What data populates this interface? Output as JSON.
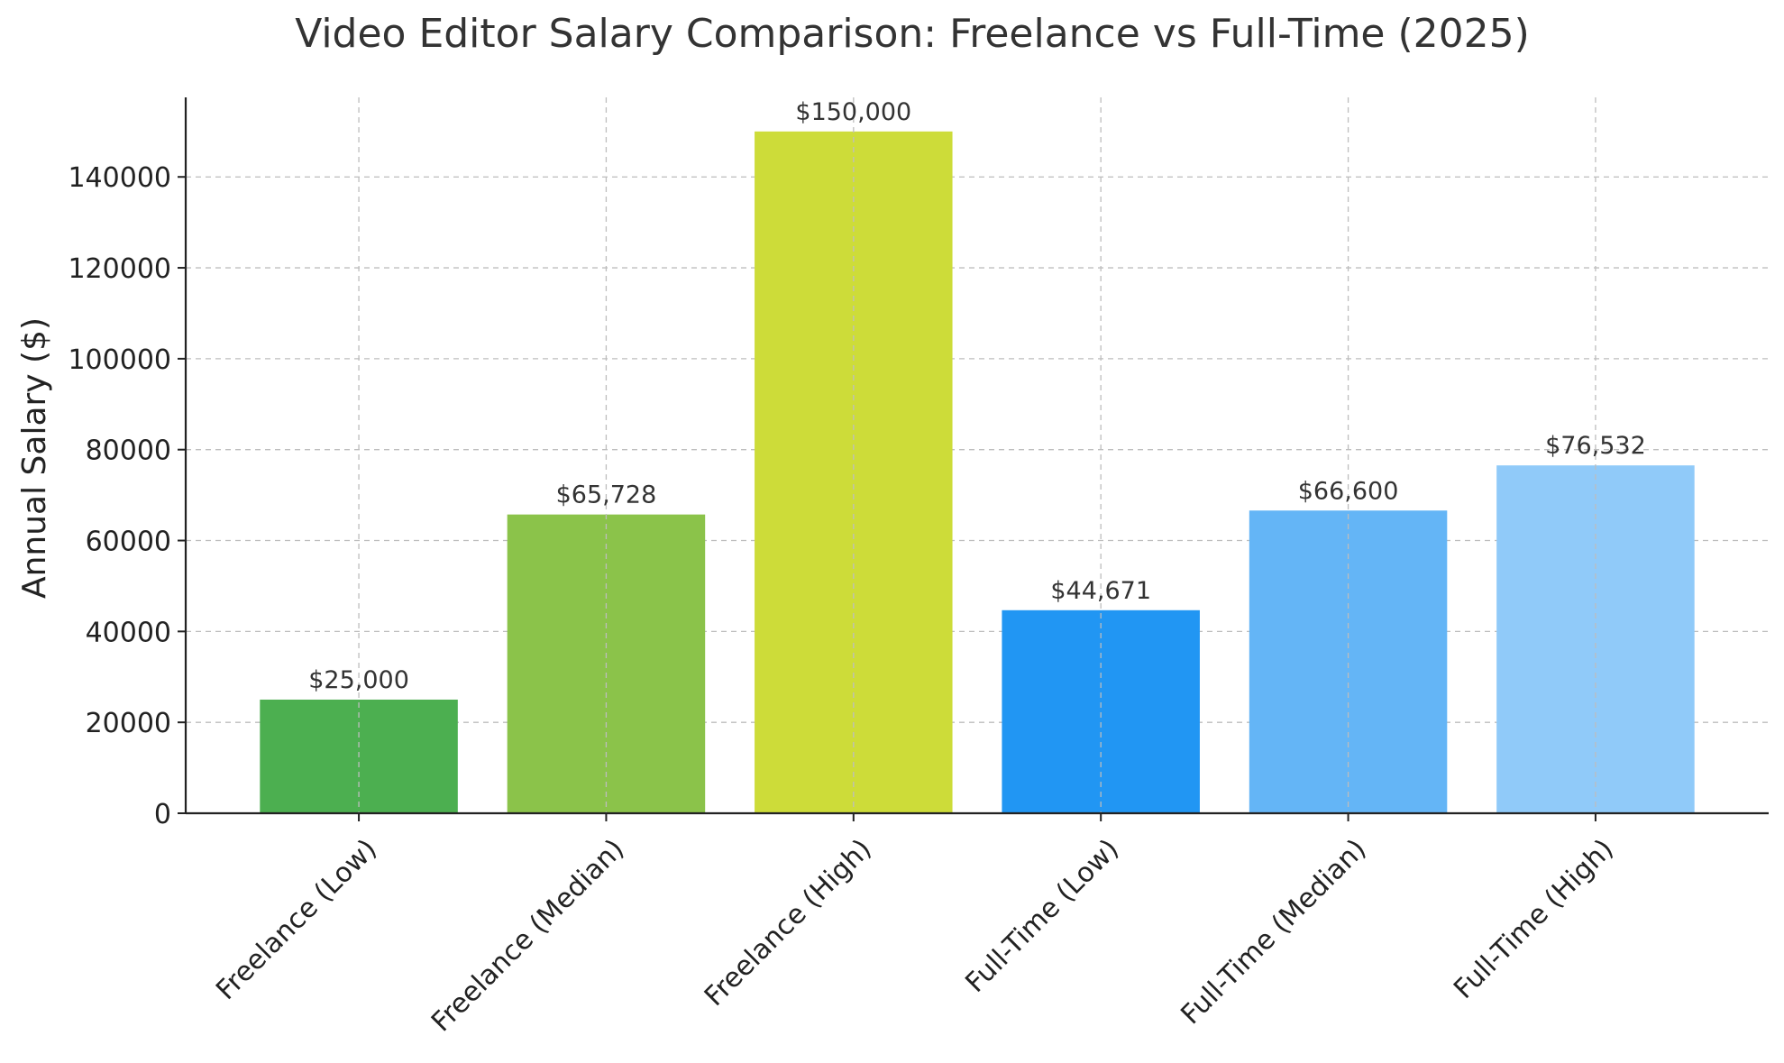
{
  "chart_data": {
    "type": "bar",
    "title": "Video Editor Salary Comparison: Freelance vs Full-Time (2025)",
    "xlabel": "",
    "ylabel": "Annual Salary ($)",
    "ylim": [
      0,
      157500
    ],
    "yticks": [
      0,
      20000,
      40000,
      60000,
      80000,
      100000,
      120000,
      140000
    ],
    "ytick_labels": [
      "0",
      "20000",
      "40000",
      "60000",
      "80000",
      "100000",
      "120000",
      "140000"
    ],
    "categories": [
      "Freelance (Low)",
      "Freelance (Median)",
      "Freelance (High)",
      "Full-Time (Low)",
      "Full-Time (Median)",
      "Full-Time (High)"
    ],
    "values": [
      25000,
      65728,
      150000,
      44671,
      66600,
      76532
    ],
    "data_labels": [
      "$25,000",
      "$65,728",
      "$150,000",
      "$44,671",
      "$66,600",
      "$76,532"
    ],
    "colors": [
      "#4caf50",
      "#8bc34a",
      "#cddc39",
      "#2196f3",
      "#64b5f6",
      "#90caf9"
    ],
    "grid": true,
    "legend": "none"
  }
}
